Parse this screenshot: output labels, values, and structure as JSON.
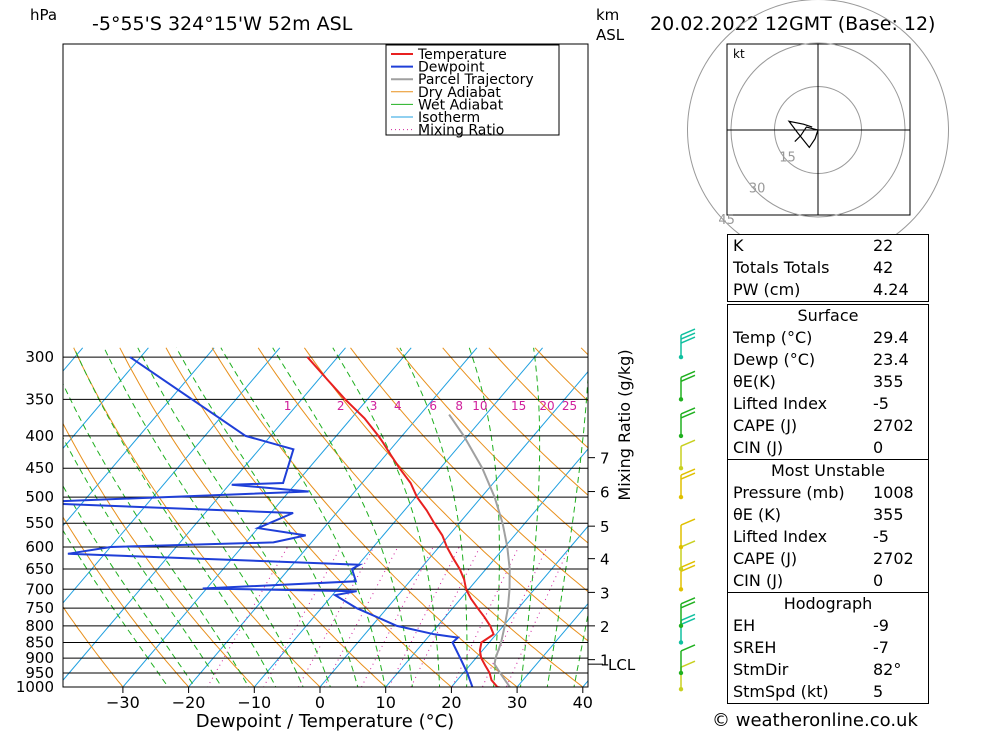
{
  "header": {
    "unit_left": "hPa",
    "location": "-5°55'S 324°15'W 52m ASL",
    "unit_right_1": "km",
    "unit_right_2": "ASL",
    "datetime": "20.02.2022 12GMT (Base: 12)"
  },
  "legend": [
    "Temperature",
    "Dewpoint",
    "Parcel Trajectory",
    "Dry Adiabat",
    "Wet Adiabat",
    "Isotherm",
    "Mixing Ratio"
  ],
  "colors": {
    "temperature": "#e82020",
    "dewpoint": "#1f3fd8",
    "parcel": "#a0a0a0",
    "dry_adiabat": "#e8901c",
    "wet_adiabat": "#20b020",
    "isotherm": "#20a0e0",
    "mixing_ratio": "#d0209c"
  },
  "chart_data": {
    "type": "skew-t",
    "xlabel": "Dewpoint / Temperature (°C)",
    "y2label": "Mixing Ratio (g/kg)",
    "pressure_ticks": [
      300,
      350,
      400,
      450,
      500,
      550,
      600,
      650,
      700,
      750,
      800,
      850,
      900,
      950,
      1000
    ],
    "temperature_ticks": [
      -30,
      -20,
      -10,
      0,
      10,
      20,
      30,
      40
    ],
    "km_ticks": [
      {
        "label": "7",
        "p": 433
      },
      {
        "label": "6",
        "p": 490
      },
      {
        "label": "5",
        "p": 556
      },
      {
        "label": "4",
        "p": 626
      },
      {
        "label": "3",
        "p": 708
      },
      {
        "label": "2",
        "p": 800
      },
      {
        "label": "1",
        "p": 905
      }
    ],
    "lcl": {
      "label": "LCL",
      "p": 920
    },
    "mixing_ratio_labels": [
      "1",
      "2",
      "3",
      "4",
      "6",
      "8",
      "10",
      "15",
      "20",
      "25"
    ],
    "temperature": [
      {
        "p": 1008,
        "t": 29.4
      },
      {
        "p": 1000,
        "t": 27.0
      },
      {
        "p": 975,
        "t": 25.2
      },
      {
        "p": 950,
        "t": 24.0
      },
      {
        "p": 925,
        "t": 22.4
      },
      {
        "p": 900,
        "t": 20.8
      },
      {
        "p": 875,
        "t": 19.6
      },
      {
        "p": 850,
        "t": 18.8
      },
      {
        "p": 825,
        "t": 19.6
      },
      {
        "p": 800,
        "t": 18.0
      },
      {
        "p": 775,
        "t": 16.0
      },
      {
        "p": 750,
        "t": 13.8
      },
      {
        "p": 725,
        "t": 11.6
      },
      {
        "p": 700,
        "t": 9.6
      },
      {
        "p": 675,
        "t": 8.0
      },
      {
        "p": 650,
        "t": 6.0
      },
      {
        "p": 625,
        "t": 3.6
      },
      {
        "p": 600,
        "t": 1.2
      },
      {
        "p": 575,
        "t": -1.0
      },
      {
        "p": 550,
        "t": -3.8
      },
      {
        "p": 525,
        "t": -6.6
      },
      {
        "p": 500,
        "t": -9.8
      },
      {
        "p": 475,
        "t": -12.6
      },
      {
        "p": 450,
        "t": -16.2
      },
      {
        "p": 425,
        "t": -19.8
      },
      {
        "p": 410,
        "t": -22.0
      },
      {
        "p": 400,
        "t": -23.6
      },
      {
        "p": 375,
        "t": -28.0
      },
      {
        "p": 350,
        "t": -33.4
      },
      {
        "p": 325,
        "t": -38.8
      },
      {
        "p": 300,
        "t": -44.6
      }
    ],
    "dewpoint": [
      {
        "p": 1008,
        "t": 23.4
      },
      {
        "p": 1000,
        "t": 23.2
      },
      {
        "p": 950,
        "t": 20.6
      },
      {
        "p": 900,
        "t": 17.6
      },
      {
        "p": 850,
        "t": 14.4
      },
      {
        "p": 835,
        "t": 14.6
      },
      {
        "p": 825,
        "t": 10.6
      },
      {
        "p": 800,
        "t": 3.8
      },
      {
        "p": 750,
        "t": -4.6
      },
      {
        "p": 715,
        "t": -9.6
      },
      {
        "p": 705,
        "t": -6.8
      },
      {
        "p": 698,
        "t": -30.6
      },
      {
        "p": 680,
        "t": -8.2
      },
      {
        "p": 650,
        "t": -10.4
      },
      {
        "p": 640,
        "t": -9.8
      },
      {
        "p": 615,
        "t": -55.6
      },
      {
        "p": 600,
        "t": -50.0
      },
      {
        "p": 590,
        "t": -25.8
      },
      {
        "p": 575,
        "t": -21.8
      },
      {
        "p": 560,
        "t": -30.0
      },
      {
        "p": 530,
        "t": -26.6
      },
      {
        "p": 510,
        "t": -68.6
      },
      {
        "p": 490,
        "t": -27.0
      },
      {
        "p": 478,
        "t": -39.6
      },
      {
        "p": 475,
        "t": -32.0
      },
      {
        "p": 420,
        "t": -34.8
      },
      {
        "p": 400,
        "t": -43.8
      },
      {
        "p": 300,
        "t": -71.6
      }
    ],
    "parcel": [
      {
        "p": 1008,
        "t": 29.4
      },
      {
        "p": 950,
        "t": 25.6
      },
      {
        "p": 920,
        "t": 23.6
      },
      {
        "p": 900,
        "t": 23.0
      },
      {
        "p": 850,
        "t": 21.8
      },
      {
        "p": 800,
        "t": 20.2
      },
      {
        "p": 750,
        "t": 18.4
      },
      {
        "p": 700,
        "t": 16.2
      },
      {
        "p": 650,
        "t": 13.6
      },
      {
        "p": 600,
        "t": 10.4
      },
      {
        "p": 550,
        "t": 6.6
      },
      {
        "p": 500,
        "t": 2.0
      },
      {
        "p": 450,
        "t": -3.6
      },
      {
        "p": 400,
        "t": -10.6
      },
      {
        "p": 370,
        "t": -15.6
      }
    ],
    "wind_barbs": [
      {
        "p": 1008,
        "speed_kt": 5
      },
      {
        "p": 950,
        "speed_kt": 5
      },
      {
        "p": 850,
        "speed_kt": 10
      },
      {
        "p": 800,
        "speed_kt": 10
      },
      {
        "p": 700,
        "speed_kt": 10
      },
      {
        "p": 650,
        "speed_kt": 5
      },
      {
        "p": 600,
        "speed_kt": 5
      },
      {
        "p": 500,
        "speed_kt": 10
      },
      {
        "p": 450,
        "speed_kt": 5
      },
      {
        "p": 400,
        "speed_kt": 10
      },
      {
        "p": 350,
        "speed_kt": 10
      },
      {
        "p": 300,
        "speed_kt": 15
      }
    ],
    "hodograph": {
      "unit": "kt",
      "ring_labels": [
        "15",
        "30",
        "45"
      ],
      "trace": [
        [
          -2,
          1
        ],
        [
          -5,
          2
        ],
        [
          -10,
          3
        ],
        [
          -7,
          -1
        ],
        [
          -3,
          -6
        ],
        [
          -1,
          -3
        ],
        [
          0,
          0
        ],
        [
          -4,
          1
        ],
        [
          -6,
          -2
        ],
        [
          -8,
          -4
        ]
      ]
    }
  },
  "indices": {
    "k": {
      "label": "K",
      "value": "22"
    },
    "tt": {
      "label": "Totals Totals",
      "value": "42"
    },
    "pw": {
      "label": "PW (cm)",
      "value": "4.24"
    }
  },
  "surface": {
    "title": "Surface",
    "temp": {
      "label": "Temp (°C)",
      "value": "29.4"
    },
    "dewp": {
      "label": "Dewp (°C)",
      "value": "23.4"
    },
    "theta_e": {
      "label": "θE(K)",
      "value": "355"
    },
    "li": {
      "label": "Lifted Index",
      "value": "-5"
    },
    "cape": {
      "label": "CAPE (J)",
      "value": "2702"
    },
    "cin": {
      "label": "CIN (J)",
      "value": "0"
    }
  },
  "most_unstable": {
    "title": "Most Unstable",
    "pressure": {
      "label": "Pressure (mb)",
      "value": "1008"
    },
    "theta_e": {
      "label": "θE (K)",
      "value": "355"
    },
    "li": {
      "label": "Lifted Index",
      "value": "-5"
    },
    "cape": {
      "label": "CAPE (J)",
      "value": "2702"
    },
    "cin": {
      "label": "CIN (J)",
      "value": "0"
    }
  },
  "hodograph_table": {
    "title": "Hodograph",
    "eh": {
      "label": "EH",
      "value": "-9"
    },
    "sreh": {
      "label": "SREH",
      "value": "-7"
    },
    "stmdir": {
      "label": "StmDir",
      "value": "82°"
    },
    "stmspd": {
      "label": "StmSpd (kt)",
      "value": "5"
    }
  },
  "footer": {
    "copyright": "© weatheronline.co.uk"
  }
}
